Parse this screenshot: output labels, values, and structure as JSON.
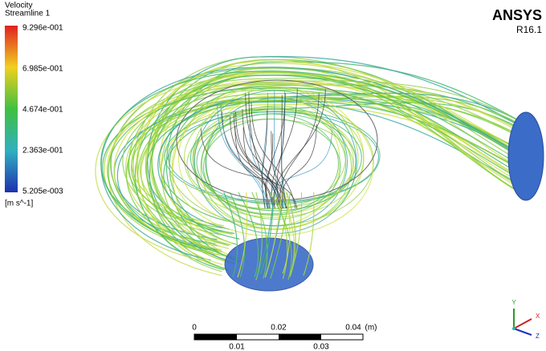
{
  "legend": {
    "title": "Velocity",
    "subtitle": "Streamline 1",
    "labels": [
      "9.296e-001",
      "6.985e-001",
      "4.674e-001",
      "2.363e-001",
      "5.205e-003"
    ],
    "unit": "[m s^-1]"
  },
  "brand": {
    "name": "ANSYS",
    "version": "R16.1"
  },
  "scale_bar": {
    "top_labels": [
      "0",
      "0.02",
      "0.04"
    ],
    "unit": "(m)",
    "bottom_labels": [
      "0.01",
      "0.03"
    ]
  },
  "triad": {
    "y": "Y",
    "x": "X",
    "z": "Z"
  }
}
